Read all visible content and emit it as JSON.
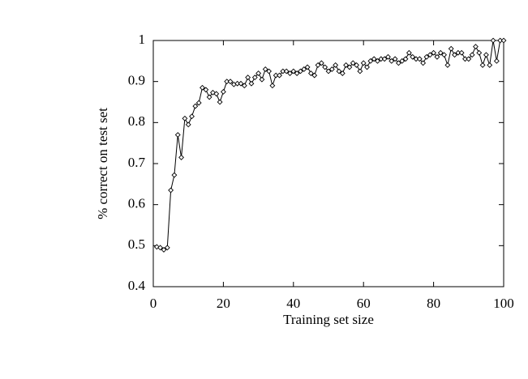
{
  "chart_data": {
    "type": "line",
    "xlabel": "Training set size",
    "ylabel": "% correct on test set",
    "x": [
      1,
      2,
      3,
      4,
      5,
      6,
      7,
      8,
      9,
      10,
      11,
      12,
      13,
      14,
      15,
      16,
      17,
      18,
      19,
      20,
      21,
      22,
      23,
      24,
      25,
      26,
      27,
      28,
      29,
      30,
      31,
      32,
      33,
      34,
      35,
      36,
      37,
      38,
      39,
      40,
      41,
      42,
      43,
      44,
      45,
      46,
      47,
      48,
      49,
      50,
      51,
      52,
      53,
      54,
      55,
      56,
      57,
      58,
      59,
      60,
      61,
      62,
      63,
      64,
      65,
      66,
      67,
      68,
      69,
      70,
      71,
      72,
      73,
      74,
      75,
      76,
      77,
      78,
      79,
      80,
      81,
      82,
      83,
      84,
      85,
      86,
      87,
      88,
      89,
      90,
      91,
      92,
      93,
      94,
      95,
      96,
      97,
      98,
      99,
      100
    ],
    "series": [
      {
        "color": "#000000",
        "values": [
          0.497,
          0.495,
          0.49,
          0.495,
          0.635,
          0.672,
          0.77,
          0.715,
          0.81,
          0.795,
          0.815,
          0.84,
          0.848,
          0.885,
          0.88,
          0.862,
          0.873,
          0.87,
          0.85,
          0.875,
          0.9,
          0.9,
          0.893,
          0.895,
          0.895,
          0.89,
          0.91,
          0.895,
          0.91,
          0.92,
          0.905,
          0.93,
          0.925,
          0.89,
          0.915,
          0.915,
          0.925,
          0.925,
          0.92,
          0.925,
          0.92,
          0.925,
          0.93,
          0.935,
          0.92,
          0.915,
          0.94,
          0.945,
          0.935,
          0.925,
          0.93,
          0.94,
          0.925,
          0.92,
          0.94,
          0.935,
          0.945,
          0.94,
          0.925,
          0.945,
          0.935,
          0.95,
          0.955,
          0.95,
          0.955,
          0.955,
          0.96,
          0.95,
          0.955,
          0.945,
          0.95,
          0.955,
          0.97,
          0.96,
          0.955,
          0.955,
          0.945,
          0.96,
          0.965,
          0.97,
          0.96,
          0.97,
          0.965,
          0.94,
          0.98,
          0.965,
          0.97,
          0.97,
          0.955,
          0.955,
          0.965,
          0.985,
          0.97,
          0.94,
          0.965,
          0.94,
          1.0,
          0.95,
          1.0,
          1.0
        ]
      }
    ],
    "xlim": [
      0,
      100
    ],
    "xticks": [
      0,
      20,
      40,
      60,
      80,
      100
    ],
    "ylim": [
      0.4,
      1
    ],
    "yticks": [
      0.4,
      0.5,
      0.6,
      0.7,
      0.8,
      0.9,
      1
    ]
  }
}
